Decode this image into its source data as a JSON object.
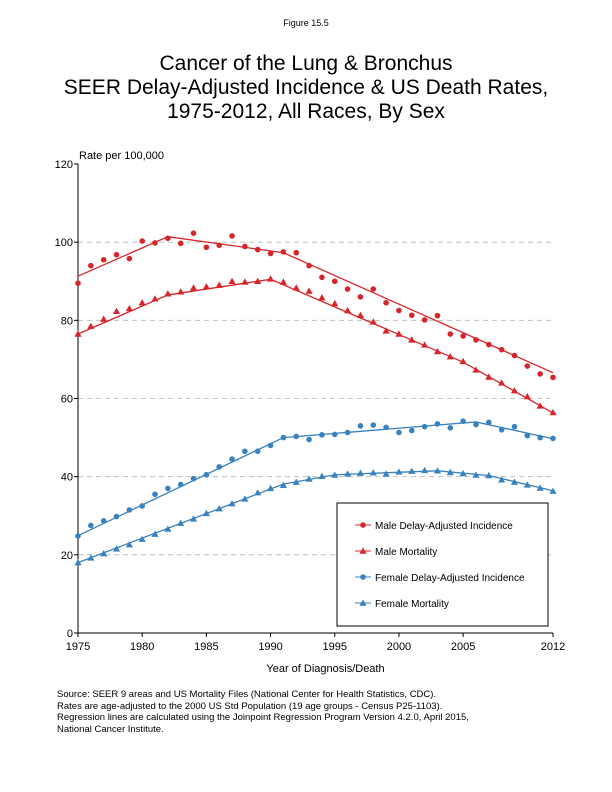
{
  "figure_label": "Figure 15.5",
  "title_lines": [
    "Cancer of the Lung & Bronchus",
    "SEER Delay-Adjusted Incidence & US Death Rates,",
    "1975-2012, All Races, By Sex"
  ],
  "source_lines": [
    "Source: SEER 9 areas and US Mortality Files (National Center for Health Statistics, CDC).",
    "Rates are age-adjusted to the 2000 US Std Population (19 age groups - Census P25-1103).",
    "Regression lines are calculated using the Joinpoint Regression Program Version 4.2.0, April 2015,",
    "National Cancer Institute."
  ],
  "chart_data": {
    "type": "scatter",
    "title": "Cancer of the Lung & Bronchus SEER Delay-Adjusted Incidence & US Death Rates, 1975-2012, All Races, By Sex",
    "xlabel": "Year of Diagnosis/Death",
    "ylabel": "Rate per 100,000",
    "xlim": [
      1975,
      2012
    ],
    "ylim": [
      0,
      120
    ],
    "x_ticks": [
      1975,
      1980,
      1985,
      1990,
      1995,
      2000,
      2005,
      2012
    ],
    "y_ticks": [
      0,
      20,
      40,
      60,
      80,
      100,
      120
    ],
    "grid": "horizontal dashed",
    "legend_position": "bottom-right",
    "x": [
      1975,
      1976,
      1977,
      1978,
      1979,
      1980,
      1981,
      1982,
      1983,
      1984,
      1985,
      1986,
      1987,
      1988,
      1989,
      1990,
      1991,
      1992,
      1993,
      1994,
      1995,
      1996,
      1997,
      1998,
      1999,
      2000,
      2001,
      2002,
      2003,
      2004,
      2005,
      2006,
      2007,
      2008,
      2009,
      2010,
      2011,
      2012
    ],
    "series": [
      {
        "name": "Male Delay-Adjusted Incidence",
        "color": "#d7262b",
        "marker": "circle",
        "values": [
          89.5,
          94.0,
          95.5,
          96.8,
          95.8,
          100.3,
          99.8,
          101.0,
          99.7,
          102.3,
          98.7,
          99.2,
          101.6,
          98.9,
          98.1,
          97.1,
          97.5,
          97.3,
          94.0,
          91.0,
          90.0,
          88.0,
          86.0,
          88.0,
          84.5,
          82.5,
          81.3,
          80.1,
          81.2,
          76.5,
          76.0,
          75.0,
          73.8,
          72.5,
          71.0,
          68.3,
          66.3,
          65.4
        ],
        "trend": [
          [
            1975,
            91.3
          ],
          [
            1982,
            101.4
          ],
          [
            1991,
            97.3
          ],
          [
            2012,
            66.6
          ]
        ]
      },
      {
        "name": "Male Mortality",
        "color": "#d7262b",
        "marker": "triangle",
        "values": [
          76.5,
          78.5,
          80.3,
          82.3,
          83.0,
          84.5,
          85.5,
          86.8,
          87.3,
          88.3,
          88.6,
          89.0,
          90.0,
          89.8,
          90.0,
          90.6,
          89.8,
          88.3,
          87.5,
          85.8,
          84.3,
          82.5,
          81.3,
          79.6,
          77.3,
          76.5,
          75.0,
          73.7,
          72.0,
          70.7,
          69.5,
          67.3,
          65.5,
          64.0,
          62.0,
          60.5,
          58.1,
          56.4
        ],
        "trend": [
          [
            1975,
            76.5
          ],
          [
            1982,
            86.5
          ],
          [
            1990,
            90.5
          ],
          [
            2005,
            69.3
          ],
          [
            2012,
            56.3
          ]
        ]
      },
      {
        "name": "Female Delay-Adjusted Incidence",
        "color": "#3a82bd",
        "marker": "circle",
        "values": [
          24.8,
          27.5,
          28.7,
          29.8,
          31.5,
          32.5,
          35.5,
          37.0,
          38.0,
          39.5,
          40.5,
          42.5,
          44.5,
          46.5,
          46.5,
          48.0,
          50.0,
          50.3,
          49.5,
          50.7,
          50.8,
          51.3,
          53.0,
          53.2,
          52.6,
          51.3,
          51.8,
          52.8,
          53.5,
          52.5,
          54.2,
          53.3,
          53.9,
          52.0,
          52.8,
          50.5,
          50.0,
          49.8
        ],
        "trend": [
          [
            1975,
            24.9
          ],
          [
            1991,
            50.0
          ],
          [
            2006,
            54.0
          ],
          [
            2012,
            49.7
          ]
        ]
      },
      {
        "name": "Female Mortality",
        "color": "#3a82bd",
        "marker": "triangle",
        "values": [
          18.0,
          19.2,
          20.3,
          21.5,
          22.6,
          24.0,
          25.3,
          26.6,
          28.1,
          29.2,
          30.6,
          31.8,
          33.1,
          34.3,
          35.9,
          37.0,
          37.8,
          38.6,
          39.4,
          40.1,
          40.4,
          40.7,
          40.9,
          41.0,
          40.7,
          41.2,
          41.4,
          41.6,
          41.5,
          41.1,
          40.8,
          40.4,
          40.3,
          39.2,
          38.6,
          37.9,
          37.1,
          36.3
        ],
        "trend": [
          [
            1975,
            18.0
          ],
          [
            1991,
            38.1
          ],
          [
            1995,
            40.5
          ],
          [
            2003,
            41.5
          ],
          [
            2007,
            40.3
          ],
          [
            2012,
            36.4
          ]
        ]
      }
    ]
  }
}
